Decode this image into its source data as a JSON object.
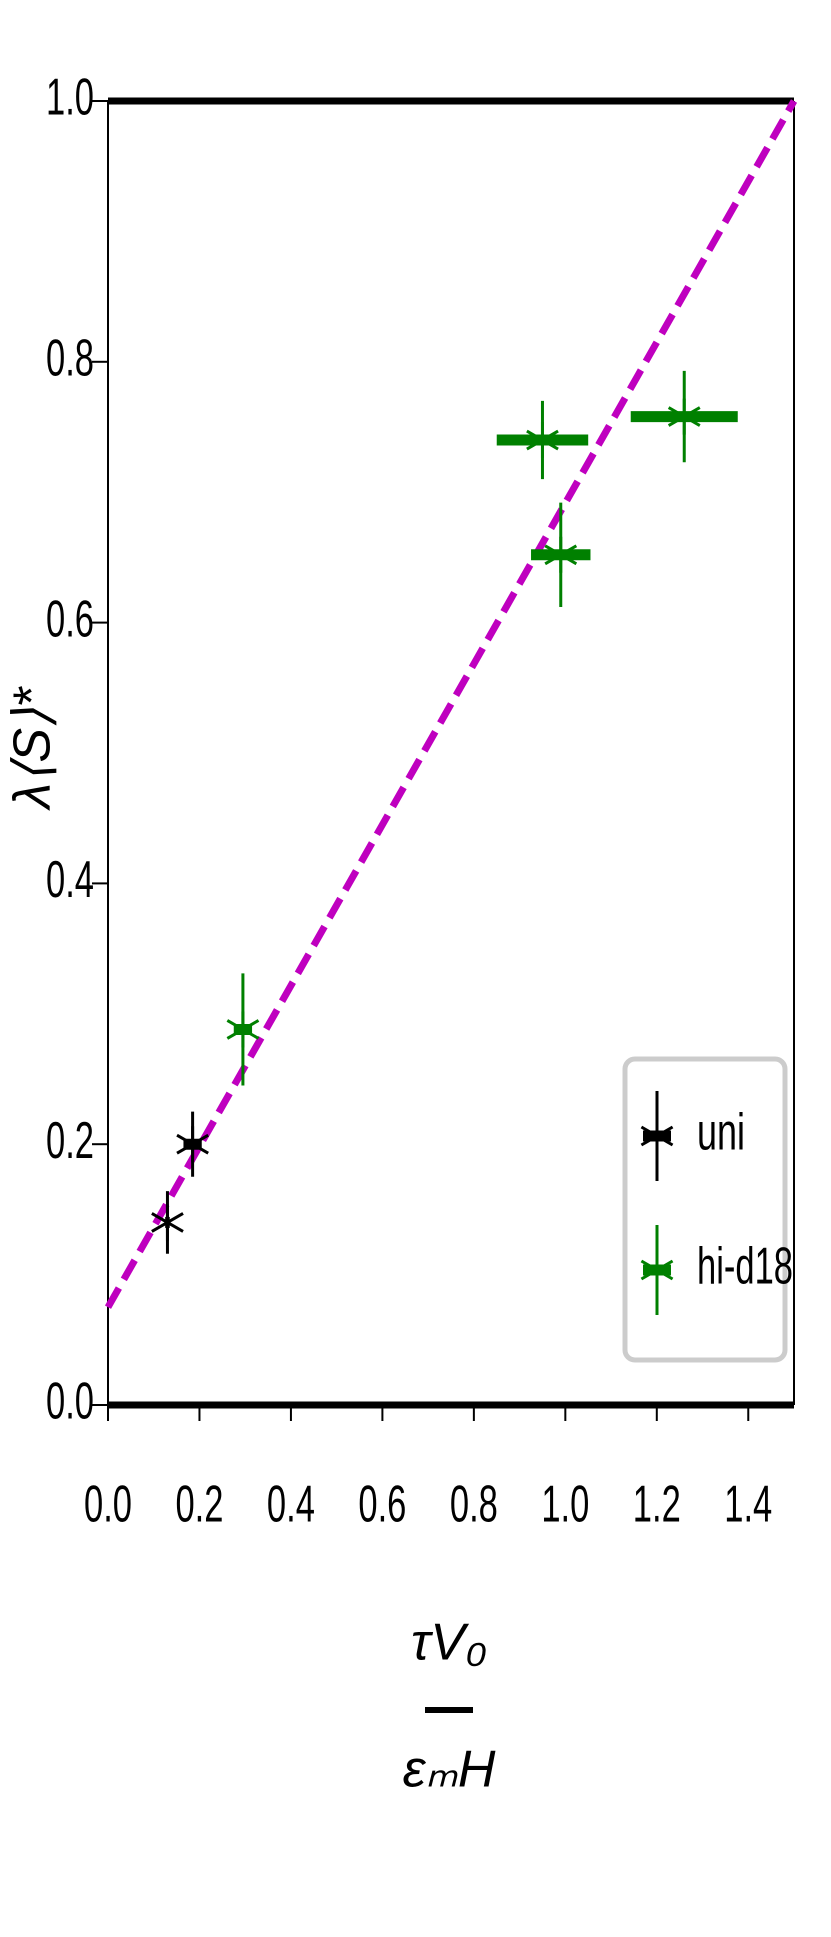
{
  "chart_data": {
    "type": "errorbar",
    "ylabel": "λ⟨S⟩*",
    "xlabel_numerator": "τV₀",
    "xlabel_denominator": "εₘH",
    "xlim": [
      0,
      1.5
    ],
    "ylim": [
      0,
      1.0
    ],
    "xticks": [
      {
        "value": 0,
        "label": "0.0"
      },
      0.2,
      0.4,
      0.6,
      0.8,
      {
        "value": 1,
        "label": "1.0"
      },
      1.2,
      1.4
    ],
    "yticks": [
      {
        "value": 0,
        "label": "0.0"
      },
      0.2,
      0.4,
      0.6,
      0.8,
      {
        "value": 1,
        "label": "1.0"
      }
    ],
    "legend": "lower right",
    "series": [
      {
        "name": "uni",
        "color": "#000000",
        "x": [
          0.13,
          0.185
        ],
        "y": [
          0.14,
          0.2
        ],
        "xerr": [
          0.005,
          0.02
        ],
        "yerr": [
          0.024,
          0.025
        ]
      },
      {
        "name": "hi-d18",
        "color": "#008000",
        "x": [
          0.295,
          0.95,
          0.99,
          1.26
        ],
        "y": [
          0.288,
          0.74,
          0.652,
          0.758
        ],
        "xerr": [
          0.02,
          0.1,
          0.065,
          0.117
        ],
        "yerr": [
          0.043,
          0.03,
          0.04,
          0.035
        ]
      }
    ],
    "fit": {
      "color": "#bf00bf",
      "x": [
        0,
        1.5
      ],
      "y": [
        0.075,
        1.0
      ]
    }
  }
}
